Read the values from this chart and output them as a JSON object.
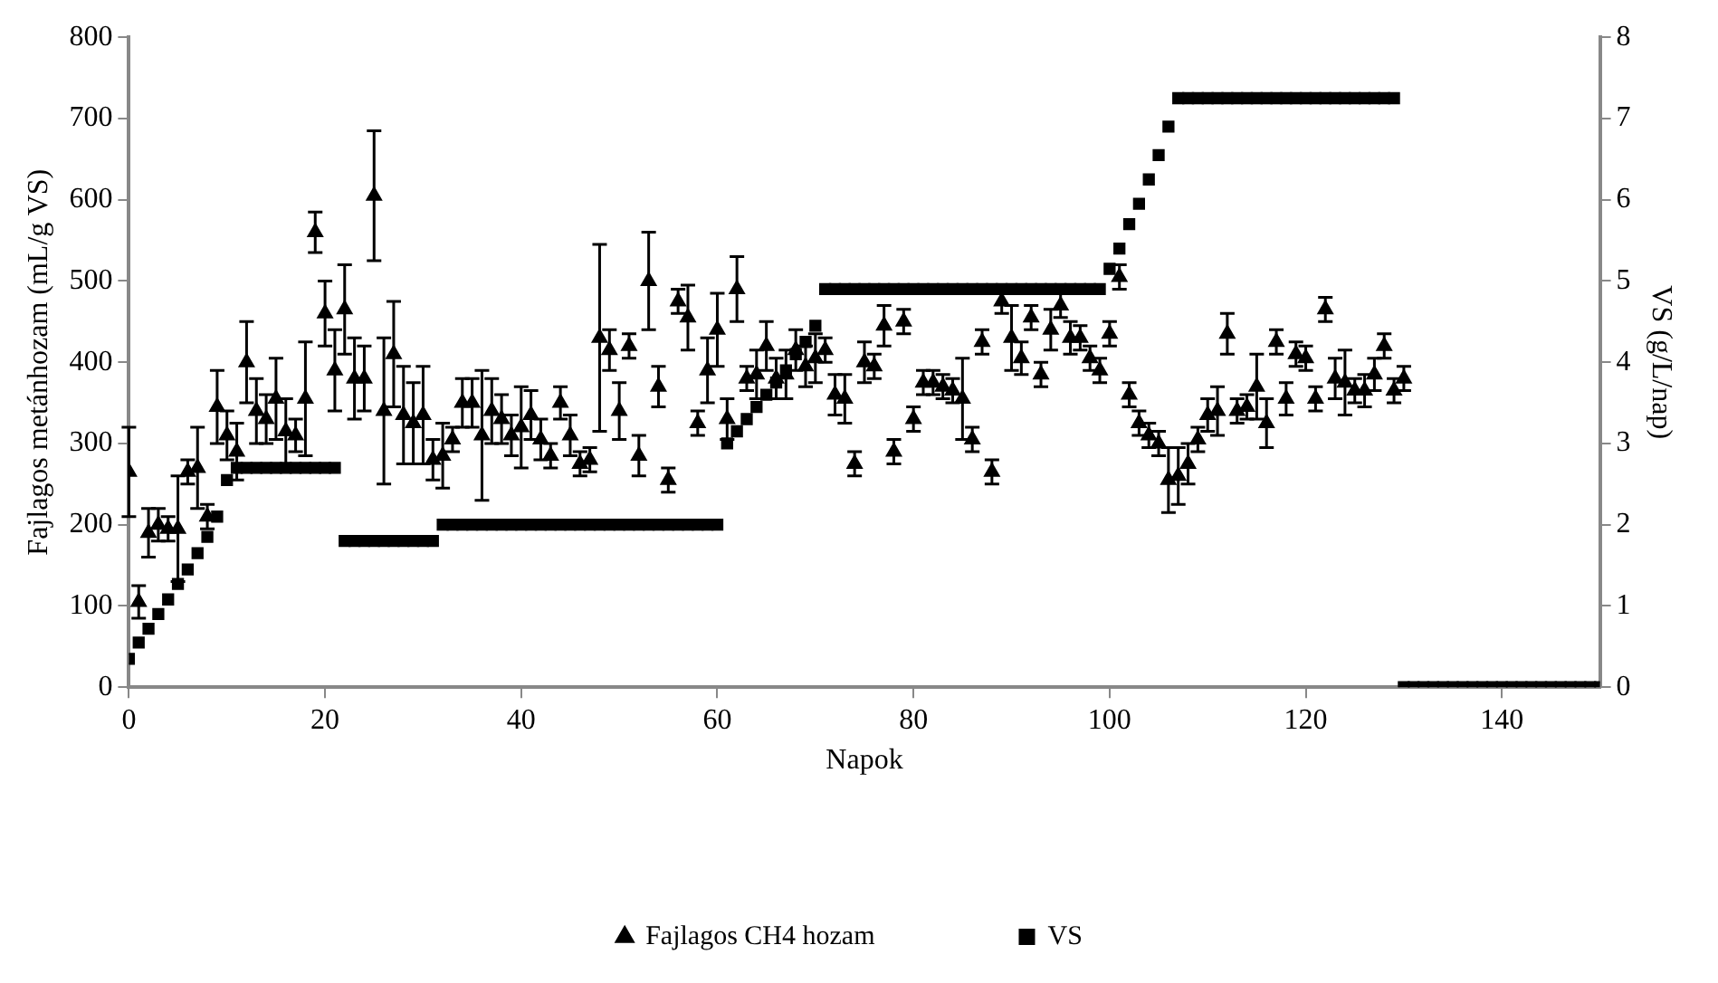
{
  "chart_data": {
    "type": "scatter",
    "xlabel": "Napok",
    "ylabel": "Fajlagos metánhozam (mL/g VS)",
    "y2label": "VS (g/L/nap)",
    "x": [
      0,
      1,
      2,
      3,
      4,
      5,
      6,
      7,
      8,
      9,
      10,
      11,
      12,
      13,
      14,
      15,
      16,
      17,
      18,
      19,
      20,
      21,
      22,
      23,
      24,
      25,
      26,
      27,
      28,
      29,
      30,
      31,
      32,
      33,
      34,
      35,
      36,
      37,
      38,
      39,
      40,
      41,
      42,
      43,
      44,
      45,
      46,
      47,
      48,
      49,
      50,
      51,
      52,
      53,
      54,
      55,
      56,
      57,
      58,
      59,
      60,
      61,
      62,
      63,
      64,
      65,
      66,
      67,
      68,
      69,
      70,
      71,
      72,
      73,
      74,
      75,
      76,
      77,
      78,
      79,
      80,
      81,
      82,
      83,
      84,
      85,
      86,
      87,
      88,
      89,
      90,
      91,
      92,
      93,
      94,
      95,
      96,
      97,
      98,
      99,
      100,
      101,
      102,
      103,
      104,
      105,
      106,
      107,
      108,
      109,
      110,
      111,
      112,
      113,
      114,
      115,
      116,
      117,
      118,
      119,
      120,
      121,
      122,
      123,
      124,
      125,
      126,
      127,
      128,
      129,
      130,
      131,
      132,
      133,
      134,
      135,
      136,
      137,
      138,
      139,
      140,
      141,
      142,
      143,
      144,
      145,
      146,
      147,
      148,
      149,
      150
    ],
    "series": [
      {
        "name": "Fajlagos CH4 hozam",
        "color": "#000000",
        "marker": "triangle",
        "values": [
          265,
          105,
          190,
          200,
          195,
          195,
          265,
          270,
          210,
          345,
          310,
          290,
          400,
          340,
          330,
          355,
          315,
          310,
          355,
          560,
          460,
          390,
          465,
          380,
          380,
          605,
          340,
          410,
          335,
          325,
          335,
          280,
          285,
          305,
          350,
          350,
          310,
          340,
          330,
          310,
          320,
          335,
          305,
          285,
          350,
          310,
          275,
          280,
          430,
          415,
          340,
          420,
          285,
          500,
          370,
          255,
          475,
          455,
          325,
          390,
          440,
          330,
          490,
          380,
          385,
          420,
          380,
          385,
          415,
          395,
          405,
          415,
          360,
          355,
          275,
          400,
          395,
          445,
          290,
          450,
          330,
          375,
          375,
          370,
          365,
          355,
          305,
          425,
          265,
          475,
          430,
          405,
          455,
          385,
          440,
          470,
          430,
          430,
          405,
          390,
          435,
          505,
          360,
          325,
          310,
          300,
          255,
          260,
          275,
          305,
          335,
          340,
          435,
          340,
          345,
          370,
          325,
          425,
          355,
          410,
          405,
          355,
          465,
          380,
          375,
          365,
          365,
          385,
          420,
          365,
          380,
          null,
          null,
          null,
          null,
          null,
          null,
          null,
          null,
          null,
          null,
          null,
          null,
          null,
          null,
          null,
          null,
          null,
          null,
          null,
          null
        ],
        "errors": [
          55,
          20,
          30,
          20,
          15,
          65,
          15,
          50,
          15,
          45,
          30,
          35,
          50,
          40,
          30,
          50,
          40,
          20,
          70,
          25,
          40,
          50,
          55,
          50,
          40,
          80,
          90,
          65,
          60,
          50,
          60,
          25,
          40,
          15,
          30,
          30,
          80,
          40,
          30,
          25,
          50,
          30,
          25,
          15,
          20,
          25,
          15,
          15,
          115,
          25,
          35,
          15,
          25,
          60,
          25,
          15,
          15,
          40,
          15,
          40,
          45,
          25,
          40,
          15,
          30,
          30,
          25,
          30,
          25,
          25,
          30,
          15,
          25,
          30,
          15,
          25,
          15,
          25,
          15,
          15,
          15,
          15,
          15,
          15,
          15,
          50,
          15,
          15,
          15,
          15,
          40,
          20,
          15,
          15,
          25,
          15,
          20,
          15,
          15,
          15,
          15,
          15,
          15,
          15,
          15,
          15,
          40,
          35,
          25,
          15,
          20,
          30,
          25,
          15,
          15,
          40,
          30,
          15,
          20,
          15,
          15,
          15,
          15,
          25,
          40,
          15,
          20,
          20,
          15,
          15,
          15,
          null,
          null,
          null,
          null,
          null,
          null,
          null,
          null,
          null,
          null,
          null,
          null,
          null,
          null,
          null,
          null,
          null,
          null,
          null,
          null
        ]
      },
      {
        "name": "VS",
        "color": "#000000",
        "marker": "square",
        "axis": "y2",
        "values": [
          0.35,
          0.55,
          0.72,
          0.9,
          1.08,
          1.27,
          1.45,
          1.65,
          1.85,
          2.1,
          2.55,
          2.7,
          2.7,
          2.7,
          2.7,
          2.7,
          2.7,
          2.7,
          2.7,
          2.7,
          2.7,
          2.7,
          1.8,
          1.8,
          1.8,
          1.8,
          1.8,
          1.8,
          1.8,
          1.8,
          1.8,
          1.8,
          2,
          2,
          2,
          2,
          2,
          2,
          2,
          2,
          2,
          2,
          2,
          2,
          2,
          2,
          2,
          2,
          2,
          2,
          2,
          2,
          2,
          2,
          2,
          2,
          2,
          2,
          2,
          2,
          2,
          3,
          3.15,
          3.3,
          3.45,
          3.6,
          3.75,
          3.9,
          4.1,
          4.25,
          4.45,
          4.9,
          4.9,
          4.9,
          4.9,
          4.9,
          4.9,
          4.9,
          4.9,
          4.9,
          4.9,
          4.9,
          4.9,
          4.9,
          4.9,
          4.9,
          4.9,
          4.9,
          4.9,
          4.9,
          4.9,
          4.9,
          4.9,
          4.9,
          4.9,
          4.9,
          4.9,
          4.9,
          4.9,
          4.9,
          5.15,
          5.4,
          5.7,
          5.95,
          6.25,
          6.55,
          6.9,
          7.25,
          7.25,
          7.25,
          7.25,
          7.25,
          7.25,
          7.25,
          7.25,
          7.25,
          7.25,
          7.25,
          7.25,
          7.25,
          7.25,
          7.25,
          7.25,
          7.25,
          7.25,
          7.25,
          7.25,
          7.25,
          7.25,
          7.25,
          0,
          0,
          0,
          0,
          0,
          0,
          0,
          0,
          0,
          0,
          0,
          0,
          0,
          0,
          0,
          0,
          0,
          0,
          0,
          0,
          0
        ]
      }
    ],
    "xlim": [
      0,
      150
    ],
    "xticks": [
      0,
      20,
      40,
      60,
      80,
      100,
      120,
      140
    ],
    "ylim": [
      0,
      800
    ],
    "yticks": [
      0,
      100,
      200,
      300,
      400,
      500,
      600,
      700,
      800
    ],
    "y2lim": [
      0,
      8
    ],
    "y2ticks": [
      0,
      1,
      2,
      3,
      4,
      5,
      6,
      7,
      8
    ],
    "grid": false,
    "legend": "bottom"
  }
}
